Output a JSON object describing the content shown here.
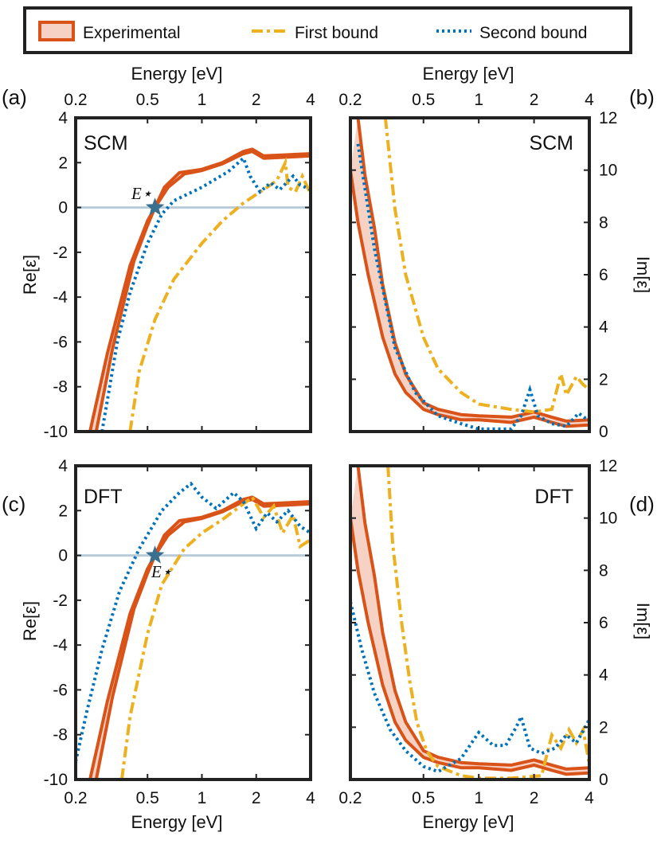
{
  "legend": {
    "experimental": "Experimental",
    "first_bound": "First bound",
    "second_bound": "Second bound"
  },
  "colors": {
    "experimental": "#d95319",
    "experimental_fill": "#f6d2c4",
    "first_bound": "#edb120",
    "second_bound": "#0072bd",
    "zero_line": "#b7ccd8",
    "star": "#3a6f8f",
    "axis": "#222222"
  },
  "estar_label": "E⋆",
  "chart_data": [
    {
      "id": "a",
      "type": "line",
      "panel_label": "(a)",
      "model_label": "SCM",
      "xscale": "log",
      "xlim": [
        0.2,
        4
      ],
      "xticks": [
        0.2,
        0.5,
        1,
        2,
        4
      ],
      "xtick_labels": [
        "0.2",
        "0.5",
        "1",
        "2",
        "4"
      ],
      "xlabel": "Energy [eV]",
      "xlabel_position": "top",
      "ylabel": "Re[ε]",
      "ylim": [
        -10,
        4
      ],
      "yticks": [
        -10,
        -8,
        -6,
        -4,
        -2,
        0,
        2,
        4
      ],
      "ytick_labels": [
        "-10",
        "-8",
        "-6",
        "-4",
        "-2",
        "0",
        "2",
        "4"
      ],
      "estar": [
        0.55,
        0
      ],
      "experimental_lower": [
        [
          0.24,
          -10
        ],
        [
          0.3,
          -6.5
        ],
        [
          0.4,
          -2.6
        ],
        [
          0.5,
          -0.6
        ],
        [
          0.55,
          0
        ],
        [
          0.65,
          0.9
        ],
        [
          0.8,
          1.5
        ],
        [
          1.0,
          1.65
        ],
        [
          1.3,
          1.95
        ],
        [
          1.7,
          2.4
        ],
        [
          1.9,
          2.5
        ],
        [
          2.2,
          2.2
        ],
        [
          3.0,
          2.25
        ],
        [
          4.0,
          2.3
        ]
      ],
      "experimental_upper": [
        [
          0.26,
          -10
        ],
        [
          0.32,
          -6.3
        ],
        [
          0.42,
          -2.4
        ],
        [
          0.5,
          -0.8
        ],
        [
          0.55,
          0
        ],
        [
          0.62,
          0.9
        ],
        [
          0.75,
          1.55
        ],
        [
          1.0,
          1.7
        ],
        [
          1.3,
          2.0
        ],
        [
          1.7,
          2.5
        ],
        [
          1.9,
          2.6
        ],
        [
          2.2,
          2.3
        ],
        [
          3.0,
          2.35
        ],
        [
          4.0,
          2.4
        ]
      ],
      "first_bound": [
        [
          0.4,
          -10
        ],
        [
          0.45,
          -7.3
        ],
        [
          0.55,
          -5.0
        ],
        [
          0.7,
          -3.2
        ],
        [
          1.0,
          -1.6
        ],
        [
          1.3,
          -0.6
        ],
        [
          1.7,
          0.2
        ],
        [
          2.2,
          0.8
        ],
        [
          2.6,
          1.2
        ],
        [
          2.9,
          2.0
        ],
        [
          3.0,
          0.9
        ],
        [
          3.3,
          0.7
        ],
        [
          3.6,
          1.4
        ],
        [
          4.0,
          0.6
        ]
      ],
      "second_bound": [
        [
          0.28,
          -10
        ],
        [
          0.34,
          -6.0
        ],
        [
          0.4,
          -3.8
        ],
        [
          0.5,
          -1.6
        ],
        [
          0.6,
          -0.3
        ],
        [
          0.7,
          0.3
        ],
        [
          1.0,
          0.9
        ],
        [
          1.4,
          1.6
        ],
        [
          1.7,
          2.2
        ],
        [
          1.85,
          1.4
        ],
        [
          2.1,
          0.7
        ],
        [
          2.4,
          1.1
        ],
        [
          2.7,
          0.8
        ],
        [
          3.2,
          1.4
        ],
        [
          3.5,
          1.0
        ],
        [
          4.0,
          0.8
        ]
      ]
    },
    {
      "id": "b",
      "type": "line",
      "panel_label": "(b)",
      "model_label": "SCM",
      "xscale": "log",
      "xlim": [
        0.2,
        4
      ],
      "xticks": [
        0.2,
        0.5,
        1,
        2,
        4
      ],
      "xtick_labels": [
        "0.2",
        "0.5",
        "1",
        "2",
        "4"
      ],
      "xlabel": "Energy [eV]",
      "xlabel_position": "top",
      "ylabel": "Im[ε]",
      "ylabel_side": "right",
      "ylim": [
        0,
        12
      ],
      "yticks": [
        0,
        2,
        4,
        6,
        8,
        10,
        12
      ],
      "ytick_labels": [
        "0",
        "2",
        "4",
        "6",
        "8",
        "10",
        "12"
      ],
      "experimental_lower": [
        [
          0.2,
          10.0
        ],
        [
          0.22,
          8.0
        ],
        [
          0.25,
          6.0
        ],
        [
          0.3,
          3.6
        ],
        [
          0.35,
          2.2
        ],
        [
          0.4,
          1.5
        ],
        [
          0.5,
          0.85
        ],
        [
          0.6,
          0.65
        ],
        [
          0.8,
          0.45
        ],
        [
          1.0,
          0.45
        ],
        [
          1.5,
          0.35
        ],
        [
          2.0,
          0.55
        ],
        [
          2.5,
          0.35
        ],
        [
          3.0,
          0.2
        ],
        [
          4.0,
          0.25
        ]
      ],
      "experimental_upper": [
        [
          0.22,
          12.0
        ],
        [
          0.24,
          9.8
        ],
        [
          0.27,
          7.8
        ],
        [
          0.3,
          5.6
        ],
        [
          0.35,
          3.4
        ],
        [
          0.4,
          2.2
        ],
        [
          0.5,
          1.1
        ],
        [
          0.6,
          0.85
        ],
        [
          0.8,
          0.65
        ],
        [
          1.0,
          0.6
        ],
        [
          1.5,
          0.55
        ],
        [
          2.0,
          0.75
        ],
        [
          2.5,
          0.55
        ],
        [
          3.0,
          0.4
        ],
        [
          4.0,
          0.45
        ]
      ],
      "first_bound": [
        [
          0.31,
          12.0
        ],
        [
          0.35,
          8.5
        ],
        [
          0.4,
          6.0
        ],
        [
          0.5,
          3.6
        ],
        [
          0.6,
          2.4
        ],
        [
          0.8,
          1.5
        ],
        [
          1.0,
          1.05
        ],
        [
          1.5,
          0.85
        ],
        [
          2.0,
          0.75
        ],
        [
          2.5,
          0.85
        ],
        [
          2.8,
          2.2
        ],
        [
          3.0,
          1.4
        ],
        [
          3.4,
          2.1
        ],
        [
          3.7,
          1.8
        ],
        [
          4.0,
          1.6
        ]
      ],
      "second_bound": [
        [
          0.22,
          11.0
        ],
        [
          0.27,
          7.0
        ],
        [
          0.35,
          3.2
        ],
        [
          0.45,
          1.5
        ],
        [
          0.6,
          0.6
        ],
        [
          0.8,
          0.3
        ],
        [
          1.0,
          0.1
        ],
        [
          1.5,
          0.1
        ],
        [
          1.7,
          0.6
        ],
        [
          1.9,
          1.6
        ],
        [
          2.1,
          0.6
        ],
        [
          2.5,
          0.3
        ],
        [
          3.0,
          0.2
        ],
        [
          3.5,
          0.7
        ],
        [
          4.0,
          0.4
        ]
      ]
    },
    {
      "id": "c",
      "type": "line",
      "panel_label": "(c)",
      "model_label": "DFT",
      "xscale": "log",
      "xlim": [
        0.2,
        4
      ],
      "xticks": [
        0.2,
        0.5,
        1,
        2,
        4
      ],
      "xtick_labels": [
        "0.2",
        "0.5",
        "1",
        "2",
        "4"
      ],
      "xlabel": "Energy [eV]",
      "xlabel_position": "bottom",
      "ylabel": "Re[ε]",
      "ylim": [
        -10,
        4
      ],
      "yticks": [
        -10,
        -8,
        -6,
        -4,
        -2,
        0,
        2,
        4
      ],
      "ytick_labels": [
        "-10",
        "-8",
        "-6",
        "-4",
        "-2",
        "0",
        "2",
        "4"
      ],
      "estar": [
        0.55,
        0
      ],
      "experimental_lower": [
        [
          0.24,
          -10
        ],
        [
          0.3,
          -6.5
        ],
        [
          0.4,
          -2.6
        ],
        [
          0.5,
          -0.6
        ],
        [
          0.55,
          0
        ],
        [
          0.65,
          0.9
        ],
        [
          0.8,
          1.5
        ],
        [
          1.0,
          1.65
        ],
        [
          1.3,
          1.95
        ],
        [
          1.7,
          2.4
        ],
        [
          1.9,
          2.5
        ],
        [
          2.2,
          2.2
        ],
        [
          3.0,
          2.25
        ],
        [
          4.0,
          2.3
        ]
      ],
      "experimental_upper": [
        [
          0.26,
          -10
        ],
        [
          0.32,
          -6.3
        ],
        [
          0.42,
          -2.4
        ],
        [
          0.5,
          -0.8
        ],
        [
          0.55,
          0
        ],
        [
          0.62,
          0.9
        ],
        [
          0.75,
          1.55
        ],
        [
          1.0,
          1.7
        ],
        [
          1.3,
          2.0
        ],
        [
          1.7,
          2.5
        ],
        [
          1.9,
          2.6
        ],
        [
          2.2,
          2.3
        ],
        [
          3.0,
          2.35
        ],
        [
          4.0,
          2.4
        ]
      ],
      "first_bound": [
        [
          0.36,
          -10
        ],
        [
          0.4,
          -7.2
        ],
        [
          0.5,
          -3.5
        ],
        [
          0.6,
          -1.3
        ],
        [
          0.8,
          0.3
        ],
        [
          1.0,
          1.0
        ],
        [
          1.3,
          1.6
        ],
        [
          1.7,
          2.3
        ],
        [
          1.9,
          2.6
        ],
        [
          2.2,
          1.7
        ],
        [
          2.5,
          2.2
        ],
        [
          2.8,
          1.0
        ],
        [
          3.2,
          1.8
        ],
        [
          3.5,
          0.4
        ],
        [
          4.0,
          0.7
        ]
      ],
      "second_bound": [
        [
          0.2,
          -9.2
        ],
        [
          0.23,
          -7.0
        ],
        [
          0.28,
          -4.2
        ],
        [
          0.35,
          -1.6
        ],
        [
          0.45,
          0.3
        ],
        [
          0.6,
          2.0
        ],
        [
          0.75,
          2.8
        ],
        [
          0.87,
          3.2
        ],
        [
          1.0,
          2.6
        ],
        [
          1.2,
          2.1
        ],
        [
          1.5,
          2.8
        ],
        [
          1.7,
          2.4
        ],
        [
          2.0,
          1.2
        ],
        [
          2.3,
          1.9
        ],
        [
          2.6,
          1.5
        ],
        [
          3.0,
          2.0
        ],
        [
          3.5,
          1.3
        ],
        [
          4.0,
          1.0
        ]
      ]
    },
    {
      "id": "d",
      "type": "line",
      "panel_label": "(d)",
      "model_label": "DFT",
      "xscale": "log",
      "xlim": [
        0.2,
        4
      ],
      "xticks": [
        0.2,
        0.5,
        1,
        2,
        4
      ],
      "xtick_labels": [
        "0.2",
        "0.5",
        "1",
        "2",
        "4"
      ],
      "xlabel": "Energy [eV]",
      "xlabel_position": "bottom",
      "ylabel": "Im[ε]",
      "ylabel_side": "right",
      "ylim": [
        0,
        12
      ],
      "yticks": [
        0,
        2,
        4,
        6,
        8,
        10,
        12
      ],
      "ytick_labels": [
        "0",
        "2",
        "4",
        "6",
        "8",
        "10",
        "12"
      ],
      "experimental_lower": [
        [
          0.2,
          10.0
        ],
        [
          0.22,
          8.0
        ],
        [
          0.25,
          6.0
        ],
        [
          0.3,
          3.6
        ],
        [
          0.35,
          2.2
        ],
        [
          0.4,
          1.5
        ],
        [
          0.5,
          0.85
        ],
        [
          0.6,
          0.65
        ],
        [
          0.8,
          0.45
        ],
        [
          1.0,
          0.45
        ],
        [
          1.5,
          0.35
        ],
        [
          2.0,
          0.55
        ],
        [
          2.5,
          0.35
        ],
        [
          3.0,
          0.2
        ],
        [
          4.0,
          0.25
        ]
      ],
      "experimental_upper": [
        [
          0.22,
          12.0
        ],
        [
          0.24,
          9.8
        ],
        [
          0.27,
          7.8
        ],
        [
          0.3,
          5.6
        ],
        [
          0.35,
          3.4
        ],
        [
          0.4,
          2.2
        ],
        [
          0.5,
          1.1
        ],
        [
          0.6,
          0.85
        ],
        [
          0.8,
          0.65
        ],
        [
          1.0,
          0.6
        ],
        [
          1.5,
          0.55
        ],
        [
          2.0,
          0.75
        ],
        [
          2.5,
          0.55
        ],
        [
          3.0,
          0.4
        ],
        [
          4.0,
          0.45
        ]
      ],
      "first_bound": [
        [
          0.32,
          12.0
        ],
        [
          0.34,
          9.0
        ],
        [
          0.38,
          6.0
        ],
        [
          0.42,
          3.8
        ],
        [
          0.46,
          2.2
        ],
        [
          0.52,
          1.1
        ],
        [
          0.6,
          0.5
        ],
        [
          0.8,
          0.15
        ],
        [
          1.0,
          0.05
        ],
        [
          1.5,
          0.05
        ],
        [
          2.2,
          0.15
        ],
        [
          2.5,
          1.7
        ],
        [
          2.8,
          1.2
        ],
        [
          3.1,
          1.9
        ],
        [
          3.4,
          1.4
        ],
        [
          3.7,
          1.9
        ],
        [
          4.0,
          0.6
        ]
      ],
      "second_bound": [
        [
          0.2,
          6.8
        ],
        [
          0.23,
          5.0
        ],
        [
          0.27,
          3.3
        ],
        [
          0.33,
          1.9
        ],
        [
          0.4,
          1.1
        ],
        [
          0.5,
          0.5
        ],
        [
          0.6,
          0.3
        ],
        [
          0.8,
          0.8
        ],
        [
          1.0,
          1.8
        ],
        [
          1.2,
          1.3
        ],
        [
          1.4,
          1.3
        ],
        [
          1.6,
          2.0
        ],
        [
          1.7,
          2.4
        ],
        [
          1.9,
          1.2
        ],
        [
          2.2,
          1.0
        ],
        [
          2.6,
          1.2
        ],
        [
          3.0,
          1.7
        ],
        [
          3.4,
          1.4
        ],
        [
          3.8,
          2.0
        ],
        [
          4.0,
          2.3
        ]
      ]
    }
  ]
}
